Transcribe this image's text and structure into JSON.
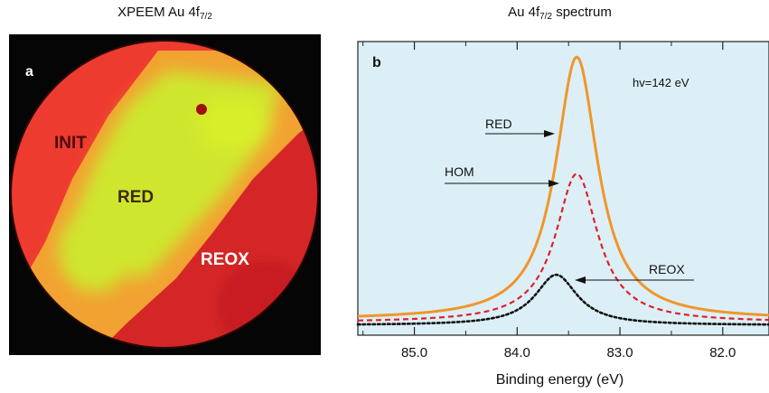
{
  "panel_a": {
    "title_main": "XPEEM Au 4f",
    "title_sub": "7/2",
    "label": "a",
    "regions": [
      "INIT",
      "RED",
      "REOX"
    ]
  },
  "panel_b": {
    "title_main": "Au 4f",
    "title_sub": "7/2",
    "title_rest": " spectrum",
    "label": "b",
    "annotation": "hv=142 eV"
  },
  "chart_data": {
    "type": "line",
    "title": "Au 4f7/2 spectrum",
    "xlabel": "Binding energy (eV)",
    "ylabel": "",
    "xlim": [
      85.55,
      81.55
    ],
    "x_reversed": true,
    "x_ticks": [
      "85.0",
      "84.0",
      "83.0",
      "82.0"
    ],
    "ylim": [
      0,
      1
    ],
    "background": "#dceff7",
    "series": [
      {
        "name": "RED",
        "color": "#f0962a",
        "style": "solid",
        "peak": 83.42,
        "height": 0.983,
        "base": 0.02,
        "hwhm": 0.25
      },
      {
        "name": "HOM",
        "color": "#e0202a",
        "style": "dashed",
        "peak": 83.42,
        "height": 0.555,
        "base": 0.01,
        "hwhm": 0.25
      },
      {
        "name": "REOX",
        "color": "#111111",
        "style": "dotted",
        "peak": 83.62,
        "height": 0.185,
        "base": 0.0,
        "hwhm": 0.25
      }
    ]
  }
}
